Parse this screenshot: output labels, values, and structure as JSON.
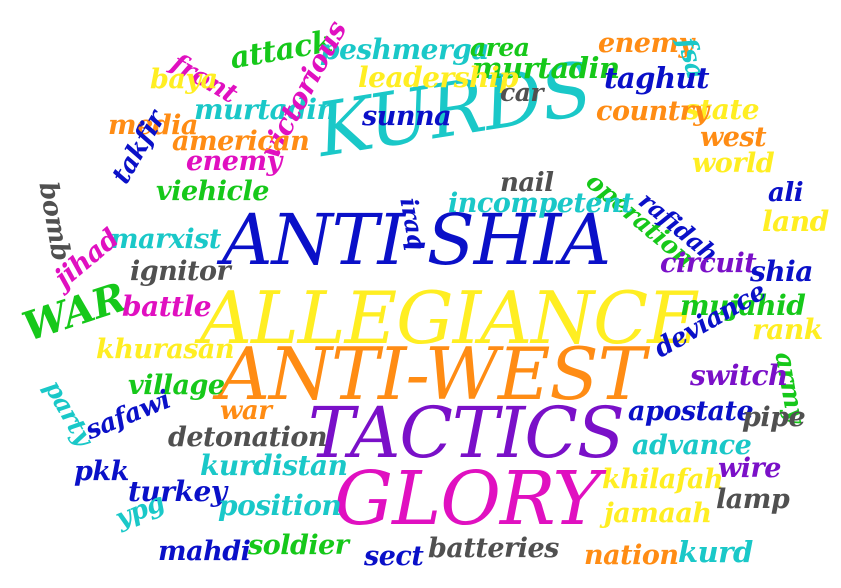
{
  "colors": {
    "cyan": "#1ac8c8",
    "blue": "#0a10c8",
    "yellow": "#ffee22",
    "orange": "#ff8c14",
    "purple": "#7a10c8",
    "magenta": "#e010c0",
    "green": "#16c81a",
    "gray": "#505050"
  },
  "words": [
    {
      "id": "w-anti-shia",
      "text": "ANTI-SHIA",
      "color": "blue"
    },
    {
      "id": "w-allegiance",
      "text": "ALLEGIANCE",
      "color": "yellow"
    },
    {
      "id": "w-anti-west",
      "text": "ANTI-WEST",
      "color": "orange"
    },
    {
      "id": "w-tactics",
      "text": "TACTICS",
      "color": "purple"
    },
    {
      "id": "w-glory",
      "text": "GLORY",
      "color": "magenta"
    },
    {
      "id": "w-kurds",
      "text": "KURDS",
      "color": "cyan"
    },
    {
      "id": "w-front",
      "text": "front",
      "color": "magenta"
    },
    {
      "id": "w-attack",
      "text": "attack",
      "color": "green"
    },
    {
      "id": "w-peshmerga",
      "text": "peshmerga",
      "color": "cyan"
    },
    {
      "id": "w-area",
      "text": "area",
      "color": "green"
    },
    {
      "id": "w-enemy-top",
      "text": "enemy",
      "color": "orange"
    },
    {
      "id": "w-fsa",
      "text": "fsa",
      "color": "cyan"
    },
    {
      "id": "w-baya",
      "text": "baya",
      "color": "yellow"
    },
    {
      "id": "w-murtadin-top",
      "text": "murtadin",
      "color": "green"
    },
    {
      "id": "w-taghut",
      "text": "taghut",
      "color": "blue"
    },
    {
      "id": "w-leadership",
      "text": "leadership",
      "color": "yellow"
    },
    {
      "id": "w-car",
      "text": "car",
      "color": "gray"
    },
    {
      "id": "w-state",
      "text": "state",
      "color": "yellow"
    },
    {
      "id": "w-murtadin",
      "text": "murtadin",
      "color": "cyan"
    },
    {
      "id": "w-sunna",
      "text": "sunna",
      "color": "blue"
    },
    {
      "id": "w-media",
      "text": "media",
      "color": "orange"
    },
    {
      "id": "w-victorious",
      "text": "victorious",
      "color": "magenta"
    },
    {
      "id": "w-country",
      "text": "country",
      "color": "orange"
    },
    {
      "id": "w-west",
      "text": "west",
      "color": "orange"
    },
    {
      "id": "w-american",
      "text": "american",
      "color": "orange"
    },
    {
      "id": "w-enemy",
      "text": "enemy",
      "color": "magenta"
    },
    {
      "id": "w-operation",
      "text": "operation",
      "color": "green"
    },
    {
      "id": "w-world",
      "text": "world",
      "color": "yellow"
    },
    {
      "id": "w-bomb",
      "text": "bomb",
      "color": "gray"
    },
    {
      "id": "w-takfir",
      "text": "takfir",
      "color": "blue"
    },
    {
      "id": "w-viehicle",
      "text": "viehicle",
      "color": "green"
    },
    {
      "id": "w-iraq",
      "text": "iraq",
      "color": "blue"
    },
    {
      "id": "w-nail",
      "text": "nail",
      "color": "gray"
    },
    {
      "id": "w-rafidah",
      "text": "rafidah",
      "color": "blue"
    },
    {
      "id": "w-ali",
      "text": "ali",
      "color": "blue"
    },
    {
      "id": "w-incompetent",
      "text": "incompetent",
      "color": "cyan"
    },
    {
      "id": "w-land",
      "text": "land",
      "color": "yellow"
    },
    {
      "id": "w-marxist",
      "text": "marxist",
      "color": "cyan"
    },
    {
      "id": "w-army",
      "text": "army",
      "color": "green"
    },
    {
      "id": "w-jihad",
      "text": "jihad",
      "color": "magenta"
    },
    {
      "id": "w-ignitor",
      "text": "ignitor",
      "color": "gray"
    },
    {
      "id": "w-circuit",
      "text": "circuit",
      "color": "purple"
    },
    {
      "id": "w-shia",
      "text": "shia",
      "color": "blue"
    },
    {
      "id": "w-war-big",
      "text": "WAR",
      "color": "green"
    },
    {
      "id": "w-battle",
      "text": "battle",
      "color": "magenta"
    },
    {
      "id": "w-mujahid",
      "text": "mujahid",
      "color": "green"
    },
    {
      "id": "w-rank",
      "text": "rank",
      "color": "yellow"
    },
    {
      "id": "w-party",
      "text": "party",
      "color": "cyan"
    },
    {
      "id": "w-khurasan",
      "text": "khurasan",
      "color": "yellow"
    },
    {
      "id": "w-deviance",
      "text": "deviance",
      "color": "blue"
    },
    {
      "id": "w-switch",
      "text": "switch",
      "color": "purple"
    },
    {
      "id": "w-village",
      "text": "village",
      "color": "green"
    },
    {
      "id": "w-war",
      "text": "war",
      "color": "orange"
    },
    {
      "id": "w-apostate",
      "text": "apostate",
      "color": "blue"
    },
    {
      "id": "w-pipe",
      "text": "pipe",
      "color": "gray"
    },
    {
      "id": "w-safawi",
      "text": "safawi",
      "color": "blue"
    },
    {
      "id": "w-detonation",
      "text": "detonation",
      "color": "gray"
    },
    {
      "id": "w-advance",
      "text": "advance",
      "color": "cyan"
    },
    {
      "id": "w-pkk",
      "text": "pkk",
      "color": "blue"
    },
    {
      "id": "w-kurdistan",
      "text": "kurdistan",
      "color": "cyan"
    },
    {
      "id": "w-wire",
      "text": "wire",
      "color": "purple"
    },
    {
      "id": "w-khilafah",
      "text": "khilafah",
      "color": "yellow"
    },
    {
      "id": "w-turkey",
      "text": "turkey",
      "color": "blue"
    },
    {
      "id": "w-position",
      "text": "position",
      "color": "cyan"
    },
    {
      "id": "w-lamp",
      "text": "lamp",
      "color": "gray"
    },
    {
      "id": "w-ypg",
      "text": "ypg",
      "color": "cyan"
    },
    {
      "id": "w-jamaah",
      "text": "jamaah",
      "color": "yellow"
    },
    {
      "id": "w-mahdi",
      "text": "mahdi",
      "color": "blue"
    },
    {
      "id": "w-soldier",
      "text": "soldier",
      "color": "green"
    },
    {
      "id": "w-sect",
      "text": "sect",
      "color": "blue"
    },
    {
      "id": "w-batteries",
      "text": "batteries",
      "color": "gray"
    },
    {
      "id": "w-nation",
      "text": "nation",
      "color": "orange"
    },
    {
      "id": "w-kurd",
      "text": "kurd",
      "color": "cyan"
    }
  ]
}
